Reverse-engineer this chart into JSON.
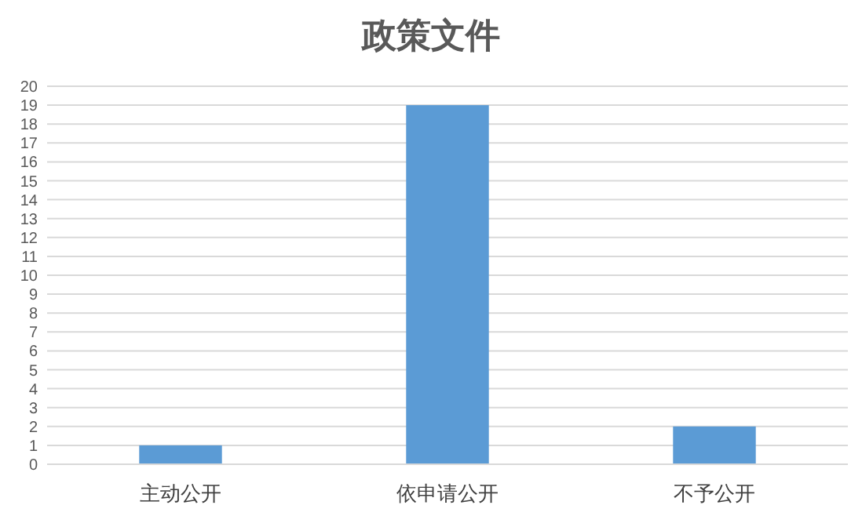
{
  "chart_data": {
    "type": "bar",
    "title": "政策文件",
    "categories": [
      "主动公开",
      "依申请公开",
      "不予公开"
    ],
    "values": [
      1,
      19,
      2
    ],
    "color": "#5b9bd5",
    "ylim": [
      0,
      20
    ],
    "yticks": [
      0,
      1,
      2,
      3,
      4,
      5,
      6,
      7,
      8,
      9,
      10,
      11,
      12,
      13,
      14,
      15,
      16,
      17,
      18,
      19,
      20
    ],
    "grid": "y"
  }
}
